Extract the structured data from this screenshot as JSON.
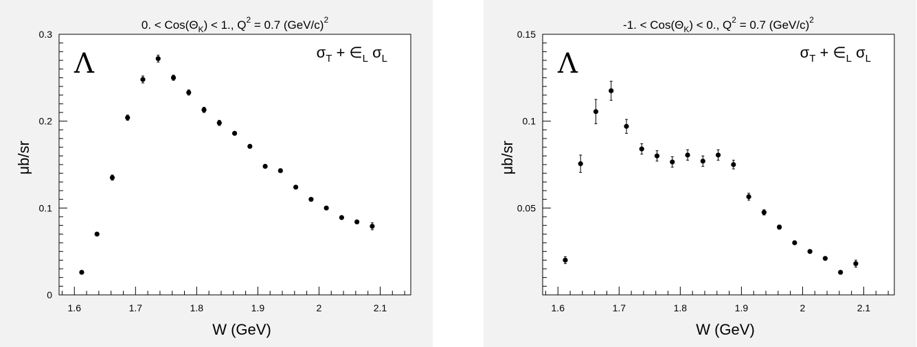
{
  "chart_data": [
    {
      "type": "scatter",
      "title_parts": {
        "lead": "0. < Cos(Θ",
        "sub": "K",
        "mid": ") < 1.,  Q",
        "sup": "2",
        "tail": " = 0.7 (GeV/c)",
        "sup2": "2"
      },
      "annotation": {
        "particle": "Λ",
        "formula_parts": {
          "a": "σ",
          "a_sub": "T",
          "plus": " + ∈",
          "b_sub": "L",
          "c": "σ",
          "c_sub": "L"
        }
      },
      "xlabel": "W (GeV)",
      "ylabel": "μb/sr",
      "xlim": [
        1.575,
        2.15
      ],
      "ylim": [
        0,
        0.3
      ],
      "xticks": [
        1.6,
        1.7,
        1.8,
        1.9,
        2,
        2.1
      ],
      "xtick_labels": [
        "1.6",
        "1.7",
        "1.8",
        "1.9",
        "2",
        "2.1"
      ],
      "yticks": [
        0,
        0.1,
        0.2,
        0.3
      ],
      "ytick_labels": [
        "0",
        "0.1",
        "0.2",
        "0.3"
      ],
      "x": [
        1.612,
        1.637,
        1.662,
        1.687,
        1.712,
        1.737,
        1.762,
        1.787,
        1.812,
        1.837,
        1.862,
        1.887,
        1.912,
        1.937,
        1.962,
        1.987,
        2.012,
        2.037,
        2.062,
        2.087
      ],
      "y": [
        0.026,
        0.07,
        0.135,
        0.204,
        0.248,
        0.272,
        0.25,
        0.233,
        0.213,
        0.198,
        0.186,
        0.171,
        0.148,
        0.143,
        0.124,
        0.11,
        0.1,
        0.089,
        0.084,
        0.079
      ],
      "err": [
        0.0015,
        0.002,
        0.003,
        0.003,
        0.004,
        0.004,
        0.003,
        0.003,
        0.003,
        0.003,
        0.002,
        0.002,
        0.002,
        0.002,
        0.002,
        0.002,
        0.002,
        0.002,
        0.002,
        0.004
      ]
    },
    {
      "type": "scatter",
      "title_parts": {
        "lead": "-1. < Cos(Θ",
        "sub": "K",
        "mid": ") < 0.,  Q",
        "sup": "2",
        "tail": " = 0.7 (GeV/c)",
        "sup2": "2"
      },
      "annotation": {
        "particle": "Λ",
        "formula_parts": {
          "a": "σ",
          "a_sub": "T",
          "plus": " + ∈",
          "b_sub": "L",
          "c": "σ",
          "c_sub": "L"
        }
      },
      "xlabel": "W (GeV)",
      "ylabel": "μb/sr",
      "xlim": [
        1.575,
        2.15
      ],
      "ylim": [
        0.0,
        0.15
      ],
      "xticks": [
        1.6,
        1.7,
        1.8,
        1.9,
        2,
        2.1
      ],
      "xtick_labels": [
        "1.6",
        "1.7",
        "1.8",
        "1.9",
        "2",
        "2.1"
      ],
      "yticks": [
        0.05,
        0.1,
        0.15
      ],
      "ytick_labels": [
        "0.05",
        "0.1",
        "0.15"
      ],
      "x": [
        1.612,
        1.637,
        1.662,
        1.687,
        1.712,
        1.737,
        1.762,
        1.787,
        1.812,
        1.837,
        1.862,
        1.887,
        1.912,
        1.937,
        1.962,
        1.987,
        2.012,
        2.037,
        2.062,
        2.087
      ],
      "y": [
        0.02,
        0.0755,
        0.1055,
        0.1175,
        0.097,
        0.084,
        0.08,
        0.0765,
        0.0805,
        0.077,
        0.0805,
        0.075,
        0.0565,
        0.0475,
        0.039,
        0.03,
        0.025,
        0.021,
        0.013,
        0.018
      ],
      "err": [
        0.002,
        0.005,
        0.007,
        0.0055,
        0.004,
        0.003,
        0.003,
        0.003,
        0.003,
        0.003,
        0.003,
        0.0025,
        0.002,
        0.0015,
        0.0012,
        0.001,
        0.001,
        0.001,
        0.001,
        0.002
      ]
    }
  ]
}
